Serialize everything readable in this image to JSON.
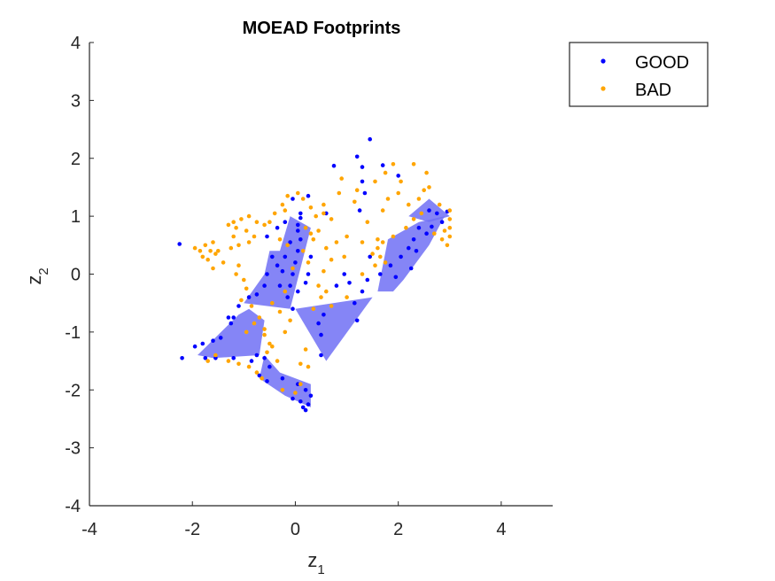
{
  "chart_data": {
    "type": "scatter",
    "title": "MOEAD Footprints",
    "xlabel": "z",
    "xlabel_sub": "1",
    "ylabel": "z",
    "ylabel_sub": "2",
    "xlim": [
      -4,
      5
    ],
    "ylim": [
      -4,
      4
    ],
    "xticks": [
      "-4",
      "-2",
      "0",
      "2",
      "4"
    ],
    "xtick_values": [
      -4,
      -2,
      0,
      2,
      4
    ],
    "yticks": [
      "-4",
      "-3",
      "-2",
      "-1",
      "0",
      "1",
      "2",
      "3",
      "4"
    ],
    "ytick_values": [
      -4,
      -3,
      -2,
      -1,
      0,
      1,
      2,
      3,
      4
    ],
    "grid": false,
    "legend_position": "outside-top-right",
    "footprint_color": "#7070f5",
    "footprints": [
      [
        [
          -0.3,
          0.4
        ],
        [
          -0.1,
          1.0
        ],
        [
          0.3,
          0.8
        ],
        [
          -0.1,
          -0.6
        ],
        [
          -1.0,
          -0.5
        ],
        [
          -0.6,
          0.0
        ],
        [
          -0.5,
          0.4
        ]
      ],
      [
        [
          -0.9,
          -0.6
        ],
        [
          -1.1,
          -0.7
        ],
        [
          -1.9,
          -1.4
        ],
        [
          -1.6,
          -1.45
        ],
        [
          -0.7,
          -1.4
        ],
        [
          -0.6,
          -0.8
        ]
      ],
      [
        [
          -0.6,
          -1.4
        ],
        [
          -0.3,
          -1.7
        ],
        [
          0.3,
          -1.9
        ],
        [
          0.3,
          -2.3
        ],
        [
          -0.2,
          -2.1
        ],
        [
          -0.7,
          -1.8
        ]
      ],
      [
        [
          0.0,
          -0.6
        ],
        [
          1.5,
          -0.4
        ],
        [
          0.6,
          -1.5
        ]
      ],
      [
        [
          1.6,
          -0.3
        ],
        [
          1.8,
          0.6
        ],
        [
          2.4,
          0.9
        ],
        [
          2.9,
          1.0
        ],
        [
          2.6,
          0.5
        ],
        [
          2.1,
          -0.1
        ],
        [
          1.9,
          -0.3
        ]
      ],
      [
        [
          2.2,
          1.0
        ],
        [
          2.6,
          1.3
        ],
        [
          3.0,
          1.0
        ],
        [
          2.6,
          0.9
        ]
      ]
    ],
    "series": [
      {
        "name": "GOOD",
        "color": "#0000ff",
        "points": [
          [
            1.45,
            2.33
          ],
          [
            1.2,
            2.03
          ],
          [
            0.75,
            1.87
          ],
          [
            1.3,
            1.85
          ],
          [
            1.7,
            1.88
          ],
          [
            2.0,
            1.7
          ],
          [
            1.3,
            1.6
          ],
          [
            1.35,
            1.4
          ],
          [
            1.25,
            1.1
          ],
          [
            0.25,
            1.35
          ],
          [
            -0.05,
            1.3
          ],
          [
            0.6,
            1.05
          ],
          [
            0.1,
            0.97
          ],
          [
            -0.2,
            0.9
          ],
          [
            -0.35,
            0.8
          ],
          [
            -0.55,
            0.65
          ],
          [
            -2.25,
            0.52
          ],
          [
            2.6,
            1.1
          ],
          [
            2.75,
            1.05
          ],
          [
            2.95,
            1.08
          ],
          [
            2.85,
            0.9
          ],
          [
            2.65,
            0.82
          ],
          [
            2.4,
            0.8
          ],
          [
            2.55,
            0.7
          ],
          [
            2.3,
            0.6
          ],
          [
            2.2,
            0.45
          ],
          [
            2.05,
            0.3
          ],
          [
            1.85,
            0.15
          ],
          [
            1.65,
            0.0
          ],
          [
            1.95,
            -0.05
          ],
          [
            2.25,
            0.1
          ],
          [
            2.35,
            0.4
          ],
          [
            1.45,
            0.3
          ],
          [
            1.4,
            -0.1
          ],
          [
            1.3,
            -0.3
          ],
          [
            1.05,
            -0.15
          ],
          [
            0.95,
            0.0
          ],
          [
            0.8,
            -0.2
          ],
          [
            1.15,
            -0.5
          ],
          [
            1.2,
            -0.8
          ],
          [
            0.55,
            -0.7
          ],
          [
            0.5,
            -1.05
          ],
          [
            0.45,
            -0.85
          ],
          [
            0.5,
            -1.4
          ],
          [
            -0.05,
            -0.6
          ],
          [
            0.05,
            -0.3
          ],
          [
            -0.25,
            0.05
          ],
          [
            -0.2,
            0.3
          ],
          [
            -0.1,
            0.55
          ],
          [
            0.05,
            0.75
          ],
          [
            0.1,
            0.6
          ],
          [
            0.05,
            0.4
          ],
          [
            0.0,
            0.2
          ],
          [
            -0.05,
            0.0
          ],
          [
            -0.1,
            -0.2
          ],
          [
            -0.15,
            -0.4
          ],
          [
            -0.3,
            -0.2
          ],
          [
            -0.35,
            0.15
          ],
          [
            -0.45,
            0.3
          ],
          [
            -0.55,
            0.0
          ],
          [
            -0.6,
            -0.2
          ],
          [
            -0.75,
            -0.35
          ],
          [
            -0.9,
            -0.4
          ],
          [
            -1.1,
            -0.55
          ],
          [
            -1.2,
            -0.75
          ],
          [
            -1.3,
            -0.75
          ],
          [
            -1.25,
            -0.85
          ],
          [
            -1.45,
            -1.1
          ],
          [
            -1.6,
            -1.15
          ],
          [
            -1.8,
            -1.2
          ],
          [
            -1.95,
            -1.25
          ],
          [
            -2.2,
            -1.45
          ],
          [
            -1.75,
            -1.45
          ],
          [
            -1.55,
            -1.45
          ],
          [
            -1.2,
            -1.45
          ],
          [
            -0.75,
            -1.4
          ],
          [
            -0.85,
            -1.5
          ],
          [
            -0.6,
            -1.45
          ],
          [
            -0.5,
            -1.6
          ],
          [
            -0.7,
            -1.75
          ],
          [
            -0.55,
            -1.85
          ],
          [
            -0.25,
            -1.8
          ],
          [
            0.05,
            -1.9
          ],
          [
            0.2,
            -2.0
          ],
          [
            0.3,
            -2.1
          ],
          [
            0.25,
            -2.25
          ],
          [
            0.2,
            -2.35
          ],
          [
            0.1,
            -2.2
          ],
          [
            -0.05,
            -2.15
          ],
          [
            0.15,
            -2.3
          ],
          [
            0.05,
            0.85
          ],
          [
            0.1,
            1.05
          ],
          [
            0.3,
            0.3
          ],
          [
            0.25,
            0.0
          ],
          [
            0.2,
            -0.15
          ]
        ]
      },
      {
        "name": "BAD",
        "color": "#ffa500",
        "points": [
          [
            2.3,
            1.9
          ],
          [
            2.6,
            1.5
          ],
          [
            1.9,
            1.9
          ],
          [
            2.55,
            1.75
          ],
          [
            2.0,
            1.4
          ],
          [
            1.8,
            1.3
          ],
          [
            1.7,
            1.1
          ],
          [
            2.2,
            1.2
          ],
          [
            2.4,
            1.3
          ],
          [
            2.8,
            1.2
          ],
          [
            3.0,
            1.1
          ],
          [
            3.0,
            0.95
          ],
          [
            3.0,
            0.8
          ],
          [
            3.0,
            0.65
          ],
          [
            2.95,
            0.5
          ],
          [
            2.85,
            0.6
          ],
          [
            2.9,
            0.75
          ],
          [
            2.7,
            0.7
          ],
          [
            2.45,
            1.05
          ],
          [
            2.3,
            0.95
          ],
          [
            2.15,
            0.8
          ],
          [
            1.9,
            0.65
          ],
          [
            1.7,
            0.55
          ],
          [
            1.6,
            0.45
          ],
          [
            1.5,
            0.35
          ],
          [
            1.65,
            0.3
          ],
          [
            1.55,
            0.15
          ],
          [
            1.75,
            0.2
          ],
          [
            1.6,
            0.6
          ],
          [
            0.9,
            1.65
          ],
          [
            0.85,
            1.4
          ],
          [
            1.15,
            1.25
          ],
          [
            1.4,
            0.9
          ],
          [
            1.3,
            0.55
          ],
          [
            1.0,
            0.65
          ],
          [
            0.95,
            0.3
          ],
          [
            0.8,
            0.55
          ],
          [
            0.6,
            0.45
          ],
          [
            0.7,
            0.25
          ],
          [
            0.55,
            0.05
          ],
          [
            0.35,
            0.6
          ],
          [
            0.2,
            0.8
          ],
          [
            0.4,
            1.0
          ],
          [
            0.55,
            1.05
          ],
          [
            0.7,
            0.95
          ],
          [
            0.3,
            1.15
          ],
          [
            0.15,
            1.3
          ],
          [
            0.05,
            1.4
          ],
          [
            -0.15,
            1.35
          ],
          [
            -0.2,
            1.1
          ],
          [
            -0.25,
            1.2
          ],
          [
            -0.4,
            1.05
          ],
          [
            -0.5,
            0.9
          ],
          [
            -0.6,
            0.85
          ],
          [
            -0.75,
            0.9
          ],
          [
            -0.9,
            1.0
          ],
          [
            -1.05,
            0.95
          ],
          [
            -1.2,
            0.9
          ],
          [
            -1.3,
            0.85
          ],
          [
            -1.15,
            0.8
          ],
          [
            -0.95,
            0.75
          ],
          [
            -0.8,
            0.65
          ],
          [
            -1.1,
            0.5
          ],
          [
            -0.9,
            0.55
          ],
          [
            -1.2,
            0.65
          ],
          [
            -1.25,
            0.45
          ],
          [
            -1.5,
            0.4
          ],
          [
            -1.6,
            0.55
          ],
          [
            -1.75,
            0.5
          ],
          [
            -1.85,
            0.4
          ],
          [
            -1.95,
            0.45
          ],
          [
            -1.8,
            0.3
          ],
          [
            -1.7,
            0.25
          ],
          [
            -1.6,
            0.1
          ],
          [
            -1.55,
            0.35
          ],
          [
            -1.65,
            0.4
          ],
          [
            -1.4,
            0.2
          ],
          [
            -1.1,
            0.15
          ],
          [
            -1.15,
            0.0
          ],
          [
            -1.0,
            -0.1
          ],
          [
            -0.95,
            -0.25
          ],
          [
            -1.05,
            -0.45
          ],
          [
            -0.85,
            -0.55
          ],
          [
            -0.7,
            -0.75
          ],
          [
            -0.6,
            -0.95
          ],
          [
            -0.5,
            -1.2
          ],
          [
            -0.55,
            -1.35
          ],
          [
            -0.45,
            -1.25
          ],
          [
            -0.35,
            -1.5
          ],
          [
            -0.2,
            -1.0
          ],
          [
            -0.1,
            -0.8
          ],
          [
            -0.3,
            -0.65
          ],
          [
            -0.45,
            -0.5
          ],
          [
            -0.2,
            -0.3
          ],
          [
            -0.05,
            0.1
          ],
          [
            -0.15,
            0.5
          ],
          [
            -0.3,
            0.6
          ],
          [
            0.15,
            0.4
          ],
          [
            0.25,
            0.2
          ],
          [
            0.3,
            0.7
          ],
          [
            0.45,
            0.75
          ],
          [
            0.5,
            -0.4
          ],
          [
            0.45,
            -0.2
          ],
          [
            0.35,
            -0.6
          ],
          [
            0.2,
            -1.3
          ],
          [
            0.25,
            -1.6
          ],
          [
            0.1,
            -1.9
          ],
          [
            -0.65,
            -1.8
          ],
          [
            -0.75,
            -1.7
          ],
          [
            -0.9,
            -1.6
          ],
          [
            -1.1,
            -1.55
          ],
          [
            -1.3,
            -1.5
          ],
          [
            -1.55,
            -1.4
          ],
          [
            -1.7,
            -1.5
          ],
          [
            -0.8,
            -0.85
          ],
          [
            -0.95,
            -1.0
          ],
          [
            -0.6,
            -1.05
          ],
          [
            -0.25,
            -2.0
          ],
          [
            0.0,
            -2.05
          ],
          [
            0.1,
            -1.55
          ],
          [
            0.6,
            -0.3
          ],
          [
            0.7,
            -0.55
          ],
          [
            1.0,
            -0.4
          ],
          [
            1.3,
            0.0
          ],
          [
            0.55,
            1.2
          ],
          [
            1.2,
            1.45
          ],
          [
            1.55,
            1.6
          ],
          [
            1.75,
            1.75
          ],
          [
            2.05,
            1.6
          ],
          [
            2.5,
            1.45
          ]
        ]
      }
    ]
  }
}
